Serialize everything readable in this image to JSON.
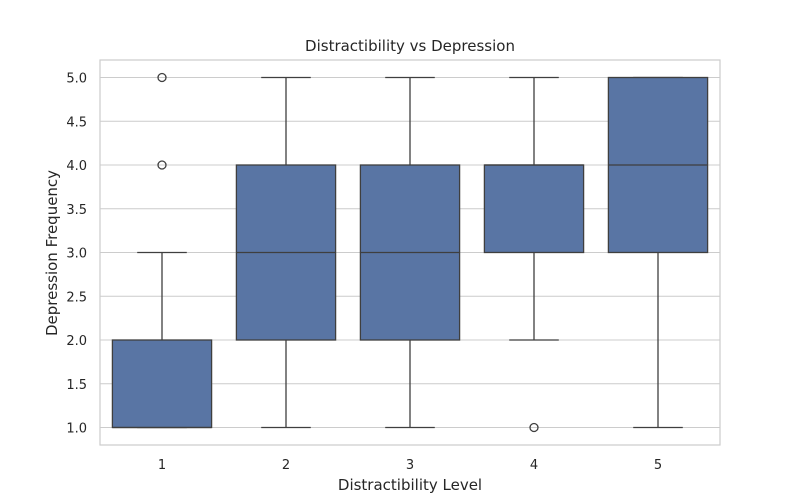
{
  "chart_data": {
    "type": "box",
    "title": "Distractibility vs Depression",
    "xlabel": "Distractibility Level",
    "ylabel": "Depression Frequency",
    "categories": [
      "1",
      "2",
      "3",
      "4",
      "5"
    ],
    "ylim": [
      0.8,
      5.2
    ],
    "yticks": [
      "1.0",
      "1.5",
      "2.0",
      "2.5",
      "3.0",
      "3.5",
      "4.0",
      "4.5",
      "5.0"
    ],
    "grid": "horizontal",
    "box_color": "#5975a4",
    "boxes": [
      {
        "category": "1",
        "whisker_low": 1.0,
        "q1": 1.0,
        "median": 1.0,
        "q3": 2.0,
        "whisker_high": 3.0,
        "outliers": [
          4.0,
          5.0
        ]
      },
      {
        "category": "2",
        "whisker_low": 1.0,
        "q1": 2.0,
        "median": 3.0,
        "q3": 4.0,
        "whisker_high": 5.0,
        "outliers": []
      },
      {
        "category": "3",
        "whisker_low": 1.0,
        "q1": 2.0,
        "median": 3.0,
        "q3": 4.0,
        "whisker_high": 5.0,
        "outliers": []
      },
      {
        "category": "4",
        "whisker_low": 2.0,
        "q1": 3.0,
        "median": 4.0,
        "q3": 4.0,
        "whisker_high": 5.0,
        "outliers": [
          1.0
        ]
      },
      {
        "category": "5",
        "whisker_low": 1.0,
        "q1": 3.0,
        "median": 4.0,
        "q3": 5.0,
        "whisker_high": 5.0,
        "outliers": []
      }
    ]
  }
}
